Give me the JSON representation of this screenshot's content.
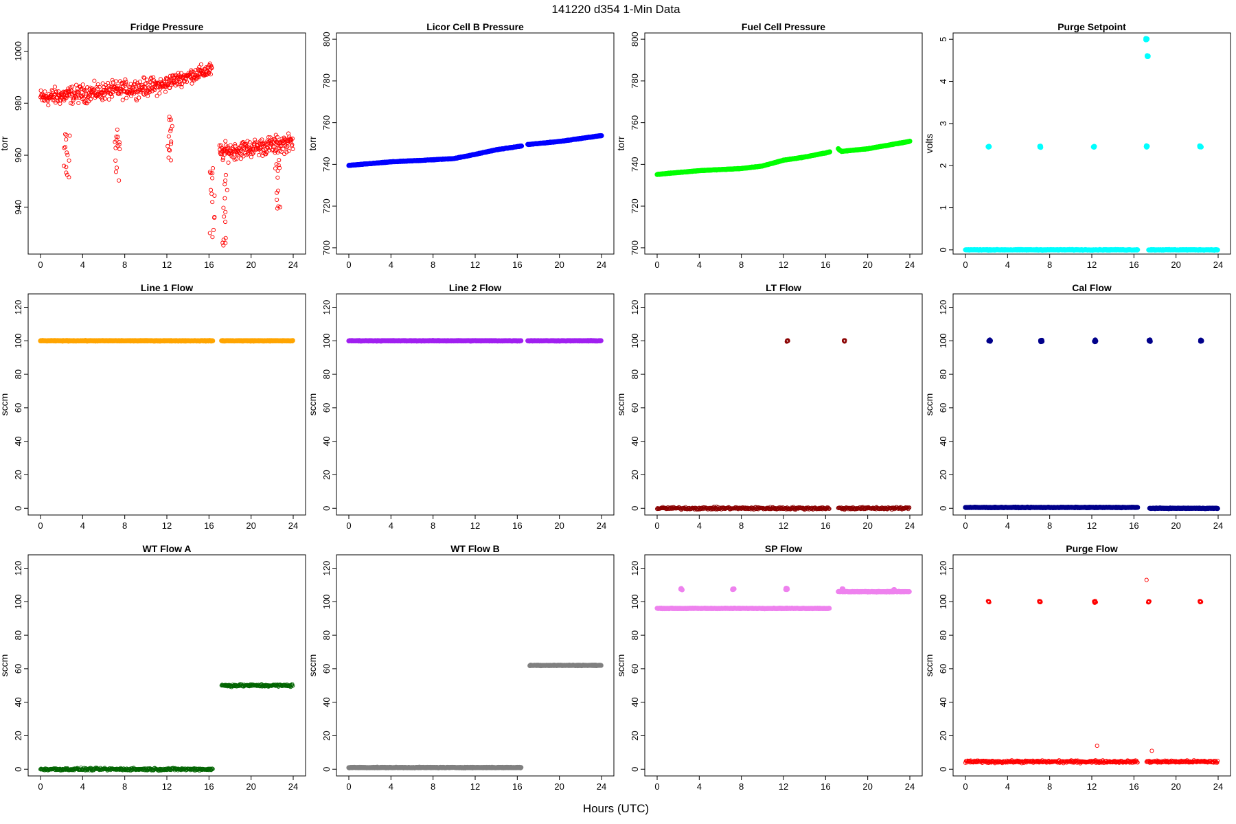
{
  "page": {
    "title": "141220    d354    1-Min Data",
    "xlabel": "Hours (UTC)"
  },
  "chart_data": [
    {
      "title": "Fridge Pressure",
      "type": "scatter",
      "ylabel": "torr",
      "color": "#ff0000",
      "marker": "open-circle",
      "xlim": [
        0,
        24
      ],
      "xticks": [
        0,
        4,
        8,
        12,
        16,
        20,
        24
      ],
      "ylim": [
        922,
        1007
      ],
      "yticks": [
        940,
        960,
        980,
        1000
      ],
      "series": [
        {
          "x_range": [
            0,
            12
          ],
          "level": [
            982,
            987
          ],
          "spread": 5
        },
        {
          "x_range": [
            12,
            16.3
          ],
          "level": [
            988,
            993
          ],
          "spread": 4
        },
        {
          "x_range": [
            17,
            24
          ],
          "level": [
            961,
            965
          ],
          "spread": 5
        }
      ],
      "dips": [
        {
          "x": 2.5,
          "y": 951
        },
        {
          "x": 7.3,
          "y": 950
        },
        {
          "x": 12.3,
          "y": 958
        },
        {
          "x": 16.3,
          "y": 927
        },
        {
          "x": 17.5,
          "y": 925
        },
        {
          "x": 22.5,
          "y": 937
        }
      ]
    },
    {
      "title": "Licor Cell B Pressure",
      "type": "scatter",
      "ylabel": "torr",
      "color": "#0000ff",
      "marker": "filled",
      "xlim": [
        0,
        24
      ],
      "xticks": [
        0,
        4,
        8,
        12,
        16,
        20,
        24
      ],
      "ylim": [
        697,
        803
      ],
      "yticks": [
        700,
        720,
        740,
        760,
        780,
        800
      ],
      "series": [
        {
          "x": [
            0,
            4,
            8,
            10,
            12,
            14,
            16,
            16.4
          ],
          "y": [
            739.5,
            741.2,
            742.2,
            742.8,
            744.8,
            747,
            748.5,
            748.8
          ]
        },
        {
          "x": [
            17,
            20,
            24
          ],
          "y": [
            749.5,
            751,
            753.8
          ]
        }
      ]
    },
    {
      "title": "Fuel Cell Pressure",
      "type": "scatter",
      "ylabel": "torr",
      "color": "#00ff00",
      "marker": "filled",
      "xlim": [
        0,
        24
      ],
      "xticks": [
        0,
        4,
        8,
        12,
        16,
        20,
        24
      ],
      "ylim": [
        697,
        803
      ],
      "yticks": [
        700,
        720,
        740,
        760,
        780,
        800
      ],
      "series": [
        {
          "x": [
            0,
            4,
            8,
            10,
            12,
            14,
            16,
            16.4
          ],
          "y": [
            735.2,
            737,
            738,
            739.2,
            742,
            743.5,
            745.5,
            746
          ]
        },
        {
          "x": [
            17.2,
            17.5,
            20,
            24
          ],
          "y": [
            747.5,
            746.2,
            747.5,
            751
          ]
        }
      ]
    },
    {
      "title": "Purge Setpoint",
      "type": "scatter",
      "ylabel": "volts",
      "color": "#00ffff",
      "marker": "filled",
      "xlim": [
        0,
        24
      ],
      "xticks": [
        0,
        4,
        8,
        12,
        16,
        20,
        24
      ],
      "ylim": [
        -0.1,
        5.15
      ],
      "yticks": [
        0,
        1,
        2,
        3,
        4,
        5
      ],
      "series": [
        {
          "x_range": [
            0,
            16.4
          ],
          "y": 0
        },
        {
          "x_range": [
            17.4,
            24
          ],
          "y": 0
        }
      ],
      "clusters": [
        {
          "x": 2.2,
          "y": 2.45
        },
        {
          "x": 7.1,
          "y": 2.45
        },
        {
          "x": 12.2,
          "y": 2.45
        },
        {
          "x": 17.2,
          "y": 2.45
        },
        {
          "x": 22.3,
          "y": 2.45
        },
        {
          "x": 17.3,
          "y": 4.6
        },
        {
          "x": 17.2,
          "y": 5.0
        }
      ]
    },
    {
      "title": "Line 1 Flow",
      "type": "scatter",
      "ylabel": "sccm",
      "color": "#ffa500",
      "marker": "filled",
      "xlim": [
        0,
        24
      ],
      "xticks": [
        0,
        4,
        8,
        12,
        16,
        20,
        24
      ],
      "ylim": [
        -4,
        128
      ],
      "yticks": [
        0,
        20,
        40,
        60,
        80,
        100,
        120
      ],
      "series": [
        {
          "x_range": [
            0,
            16.4
          ],
          "y": 100
        },
        {
          "x_range": [
            17.2,
            24
          ],
          "y": 100
        }
      ]
    },
    {
      "title": "Line 2 Flow",
      "type": "scatter",
      "ylabel": "sccm",
      "color": "#a020f0",
      "marker": "filled",
      "xlim": [
        0,
        24
      ],
      "xticks": [
        0,
        4,
        8,
        12,
        16,
        20,
        24
      ],
      "ylim": [
        -4,
        128
      ],
      "yticks": [
        0,
        20,
        40,
        60,
        80,
        100,
        120
      ],
      "series": [
        {
          "x_range": [
            0,
            16.4
          ],
          "y": 100
        },
        {
          "x_range": [
            17.0,
            24
          ],
          "y": 100
        }
      ]
    },
    {
      "title": "LT Flow",
      "type": "scatter",
      "ylabel": "sccm",
      "color": "#8b0000",
      "marker": "open-circle",
      "xlim": [
        0,
        24
      ],
      "xticks": [
        0,
        4,
        8,
        12,
        16,
        20,
        24
      ],
      "ylim": [
        -4,
        128
      ],
      "yticks": [
        0,
        20,
        40,
        60,
        80,
        100,
        120
      ],
      "series": [
        {
          "x_range": [
            0,
            16.4
          ],
          "y": 0
        },
        {
          "x_range": [
            17.2,
            24
          ],
          "y": 0
        }
      ],
      "clusters": [
        {
          "x": 12.4,
          "y": 100
        },
        {
          "x": 17.8,
          "y": 100
        }
      ]
    },
    {
      "title": "Cal Flow",
      "type": "scatter",
      "ylabel": "sccm",
      "color": "#00008b",
      "marker": "filled",
      "xlim": [
        0,
        24
      ],
      "xticks": [
        0,
        4,
        8,
        12,
        16,
        20,
        24
      ],
      "ylim": [
        -4,
        128
      ],
      "yticks": [
        0,
        20,
        40,
        60,
        80,
        100,
        120
      ],
      "series": [
        {
          "x_range": [
            0,
            16.4
          ],
          "y": 0.5
        },
        {
          "x_range": [
            17.5,
            24
          ],
          "y": 0
        }
      ],
      "clusters": [
        {
          "x": 2.3,
          "y": 100
        },
        {
          "x": 7.2,
          "y": 100
        },
        {
          "x": 12.3,
          "y": 100
        },
        {
          "x": 17.5,
          "y": 100
        },
        {
          "x": 22.4,
          "y": 100
        }
      ]
    },
    {
      "title": "WT Flow A",
      "type": "scatter",
      "ylabel": "sccm",
      "color": "#006400",
      "marker": "open-circle",
      "xlim": [
        0,
        24
      ],
      "xticks": [
        0,
        4,
        8,
        12,
        16,
        20,
        24
      ],
      "ylim": [
        -4,
        128
      ],
      "yticks": [
        0,
        20,
        40,
        60,
        80,
        100,
        120
      ],
      "series": [
        {
          "x_range": [
            0,
            16.4
          ],
          "y": 0
        },
        {
          "x_range": [
            17.2,
            24
          ],
          "y": 50
        }
      ]
    },
    {
      "title": "WT Flow B",
      "type": "scatter",
      "ylabel": "sccm",
      "color": "#808080",
      "marker": "filled",
      "xlim": [
        0,
        24
      ],
      "xticks": [
        0,
        4,
        8,
        12,
        16,
        20,
        24
      ],
      "ylim": [
        -4,
        128
      ],
      "yticks": [
        0,
        20,
        40,
        60,
        80,
        100,
        120
      ],
      "series": [
        {
          "x_range": [
            0,
            16.4
          ],
          "y": 1
        },
        {
          "x_range": [
            17.2,
            24
          ],
          "y": 62
        }
      ]
    },
    {
      "title": "SP Flow",
      "type": "scatter",
      "ylabel": "sccm",
      "color": "#ee82ee",
      "marker": "filled",
      "xlim": [
        0,
        24
      ],
      "xticks": [
        0,
        4,
        8,
        12,
        16,
        20,
        24
      ],
      "ylim": [
        -4,
        128
      ],
      "yticks": [
        0,
        20,
        40,
        60,
        80,
        100,
        120
      ],
      "series": [
        {
          "x_range": [
            0,
            16.4
          ],
          "y": 96
        },
        {
          "x_range": [
            17.2,
            24
          ],
          "y": 106
        }
      ],
      "clusters": [
        {
          "x": 2.3,
          "y": 107.5
        },
        {
          "x": 7.2,
          "y": 107.5
        },
        {
          "x": 12.3,
          "y": 107.5
        },
        {
          "x": 17.6,
          "y": 107.5
        },
        {
          "x": 22.5,
          "y": 107
        }
      ]
    },
    {
      "title": "Purge Flow",
      "type": "scatter",
      "ylabel": "sccm",
      "color": "#ff0000",
      "marker": "open-circle",
      "xlim": [
        0,
        24
      ],
      "xticks": [
        0,
        4,
        8,
        12,
        16,
        20,
        24
      ],
      "ylim": [
        -4,
        128
      ],
      "yticks": [
        0,
        20,
        40,
        60,
        80,
        100,
        120
      ],
      "series": [
        {
          "x_range": [
            0,
            16.4
          ],
          "y": 4.5
        },
        {
          "x_range": [
            17.2,
            24
          ],
          "y": 4.5
        }
      ],
      "clusters": [
        {
          "x": 2.2,
          "y": 100
        },
        {
          "x": 7.1,
          "y": 100
        },
        {
          "x": 12.3,
          "y": 100
        },
        {
          "x": 17.4,
          "y": 100
        },
        {
          "x": 22.3,
          "y": 100
        }
      ],
      "outliers": [
        {
          "x": 17.2,
          "y": 113
        },
        {
          "x": 12.5,
          "y": 14
        },
        {
          "x": 17.7,
          "y": 11
        }
      ]
    }
  ]
}
